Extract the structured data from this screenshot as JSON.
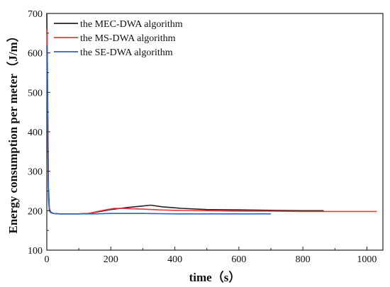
{
  "chart_data": {
    "type": "line",
    "title": "",
    "xlabel": "time（s）",
    "ylabel": "Energy consumption per meter（J/m）",
    "xlim": [
      0,
      1050
    ],
    "ylim": [
      100,
      700
    ],
    "xticks": [
      0,
      200,
      400,
      600,
      800,
      1000
    ],
    "yticks": [
      100,
      200,
      300,
      400,
      500,
      600,
      700
    ],
    "grid": false,
    "legend_position": "top-left",
    "series": [
      {
        "name": "the MEC-DWA algorithm",
        "color": "#222222",
        "x": [
          0,
          2,
          5,
          8,
          12,
          20,
          40,
          60,
          100,
          130,
          160,
          200,
          250,
          300,
          325,
          360,
          420,
          500,
          600,
          700,
          800,
          865
        ],
        "y": [
          700,
          560,
          260,
          205,
          197,
          193,
          192,
          192,
          192,
          193,
          197,
          203,
          208,
          212,
          214,
          210,
          206,
          203,
          202,
          201,
          200,
          200
        ]
      },
      {
        "name": "the MS-DWA algorithm",
        "color": "#e8383d",
        "x": [
          0,
          2,
          5,
          8,
          12,
          20,
          40,
          60,
          100,
          130,
          170,
          210,
          230,
          260,
          300,
          350,
          400,
          500,
          600,
          700,
          800,
          900,
          1000,
          1030
        ],
        "y": [
          660,
          500,
          240,
          202,
          196,
          193,
          192,
          192,
          192,
          193,
          200,
          206,
          206,
          205,
          204,
          202,
          201,
          200,
          199,
          199,
          198,
          198,
          198,
          198
        ]
      },
      {
        "name": "the SE-DWA algorithm",
        "color": "#2a66c9",
        "x": [
          0,
          2,
          5,
          8,
          12,
          20,
          40,
          60,
          100,
          150,
          200,
          300,
          400,
          500,
          600,
          700
        ],
        "y": [
          620,
          450,
          230,
          200,
          195,
          193,
          192,
          192,
          192,
          192,
          193,
          193,
          192,
          192,
          192,
          192
        ]
      }
    ]
  }
}
